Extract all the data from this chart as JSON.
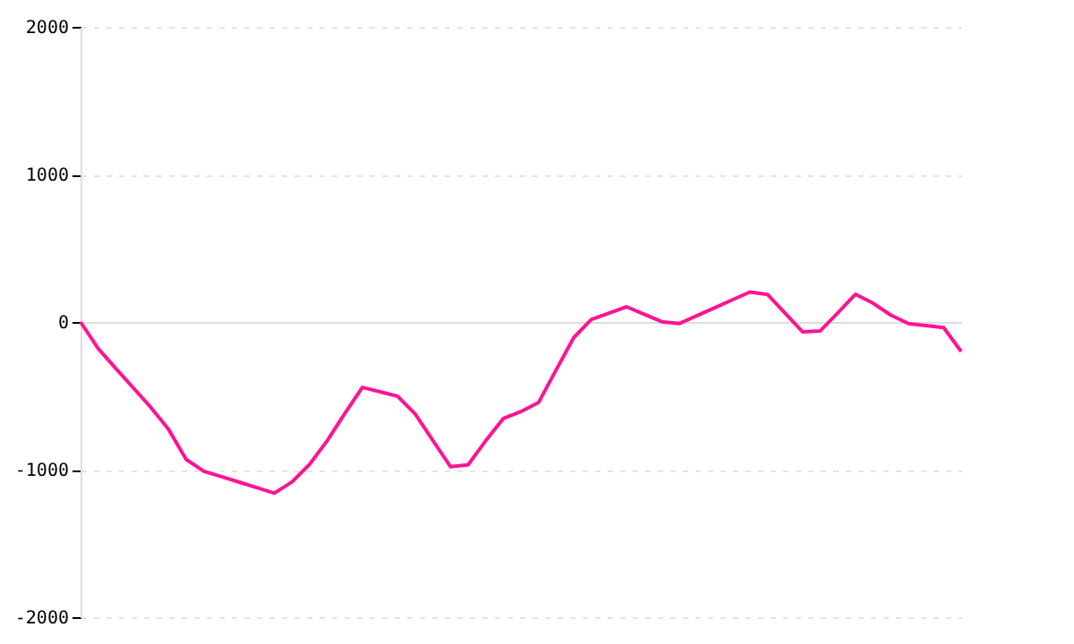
{
  "chart_data": {
    "type": "line",
    "categories": [
      null,
      null,
      null,
      null,
      null,
      null,
      null,
      null,
      null,
      null,
      null,
      null,
      null,
      null,
      null,
      null,
      null,
      null,
      null,
      null,
      null,
      null,
      null,
      null,
      null,
      null,
      null,
      null,
      null,
      null,
      null,
      null,
      null,
      null,
      null,
      null,
      null,
      null,
      null,
      null,
      null,
      null,
      null,
      null,
      null,
      null,
      null,
      null,
      null,
      null,
      null
    ],
    "series": [
      {
        "color": "#ff1493",
        "values": [
          0,
          -180,
          -314,
          -447,
          -580,
          -728,
          -932,
          -1011,
          -1048,
          -1085,
          -1122,
          -1160,
          -1084,
          -965,
          -805,
          -620,
          -443,
          -473,
          -503,
          -624,
          -802,
          -980,
          -968,
          -805,
          -654,
          -607,
          -546,
          -325,
          -106,
          18,
          60,
          103,
          52,
          2,
          -10,
          43,
          96,
          150,
          203,
          187,
          60,
          -67,
          -60,
          63,
          188,
          127,
          47,
          -11,
          -24,
          -38,
          -200
        ]
      }
    ],
    "ylim": [
      -2000,
      2000
    ],
    "yticks": [
      -2000,
      -1000,
      0,
      1000,
      2000
    ],
    "tick_labels": "y",
    "grid": "y",
    "marker": "none",
    "line_style": "solid"
  }
}
